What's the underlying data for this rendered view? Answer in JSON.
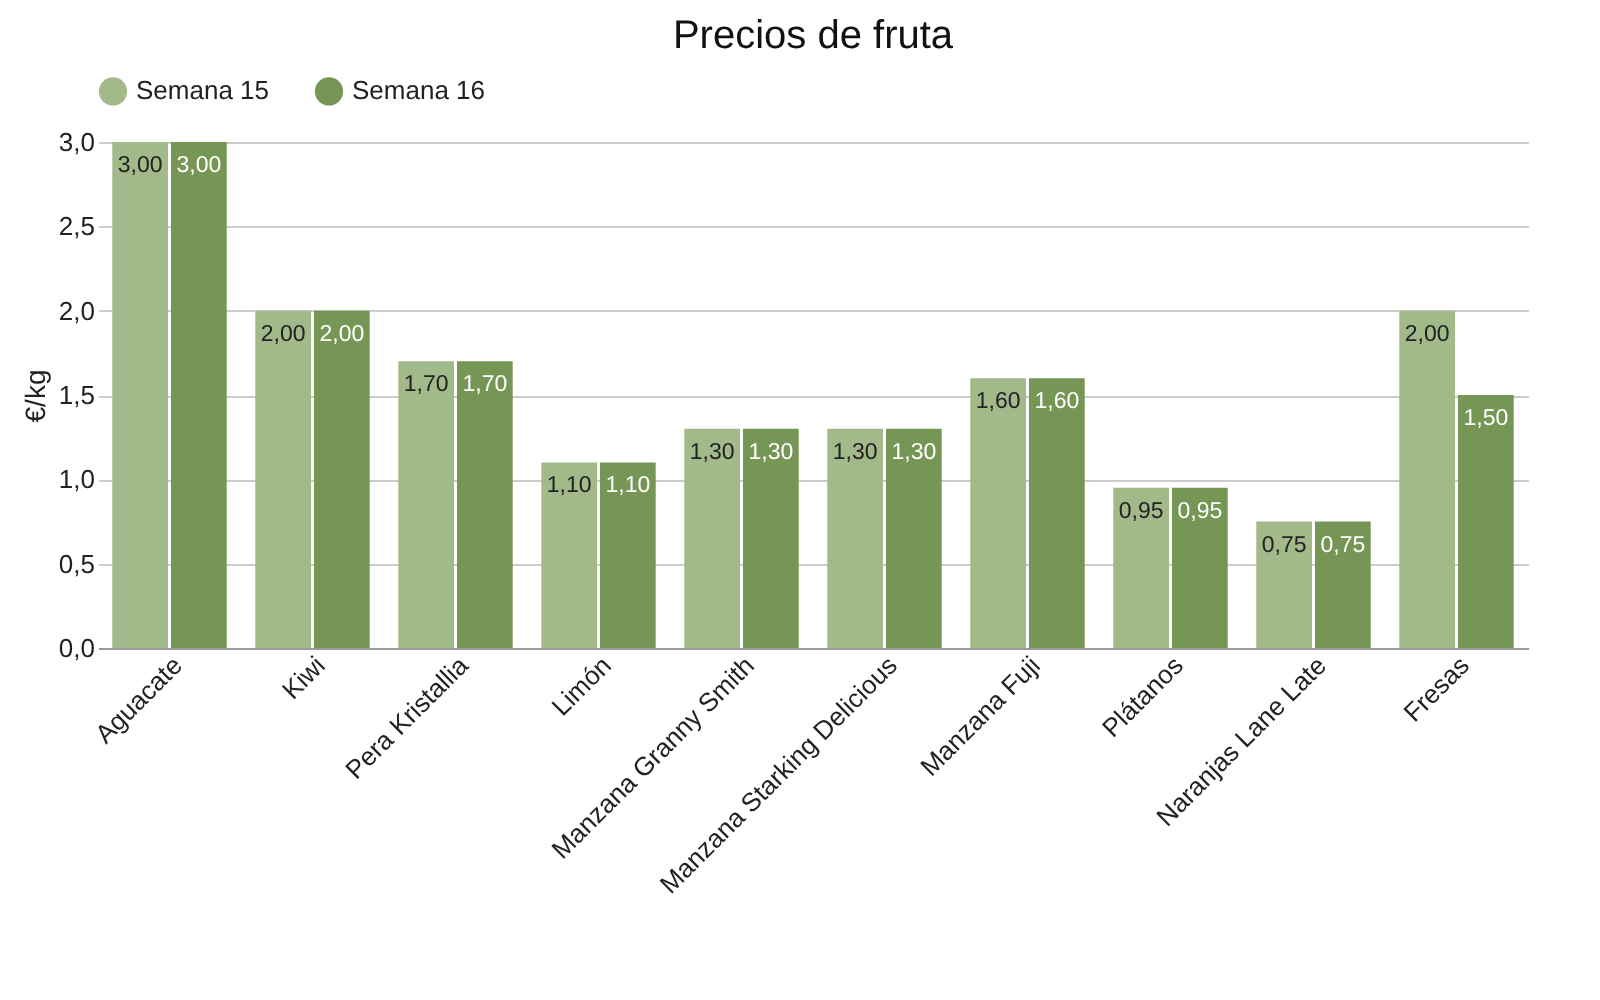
{
  "chart_data": {
    "type": "bar",
    "title": "Precios de fruta",
    "categories": [
      "Aguacate",
      "Kiwi",
      "Pera Kristallia",
      "Limón",
      "Manzana Granny Smith",
      "Manzana Starking Delicious",
      "Manzana Fuji",
      "Plátanos",
      "Naranjas Lane Late",
      "Fresas"
    ],
    "series": [
      {
        "name": "Semana 15",
        "color": "#a2b98a",
        "values": [
          3.0,
          2.0,
          1.7,
          1.1,
          1.3,
          1.3,
          1.6,
          0.95,
          0.75,
          2.0
        ],
        "value_labels": [
          "3,00",
          "2,00",
          "1,70",
          "1,10",
          "1,30",
          "1,30",
          "1,60",
          "0,95",
          "0,75",
          "2,00"
        ]
      },
      {
        "name": "Semana 16",
        "color": "#769655",
        "values": [
          3.0,
          2.0,
          1.7,
          1.1,
          1.3,
          1.3,
          1.6,
          0.95,
          0.75,
          1.5
        ],
        "value_labels": [
          "3,00",
          "2,00",
          "1,70",
          "1,10",
          "1,30",
          "1,30",
          "1,60",
          "0,95",
          "0,75",
          "1,50"
        ]
      }
    ],
    "ylabel": "€/kg",
    "ylim": [
      0,
      3
    ],
    "yticks": [
      {
        "value": 0,
        "label": "0,0"
      },
      {
        "value": 0.5,
        "label": "0,5"
      },
      {
        "value": 1,
        "label": "1,0"
      },
      {
        "value": 1.5,
        "label": "1,5"
      },
      {
        "value": 2,
        "label": "2,0"
      },
      {
        "value": 2.5,
        "label": "2,5"
      },
      {
        "value": 3,
        "label": "3,0"
      }
    ],
    "grid": "y",
    "legend": "top"
  }
}
